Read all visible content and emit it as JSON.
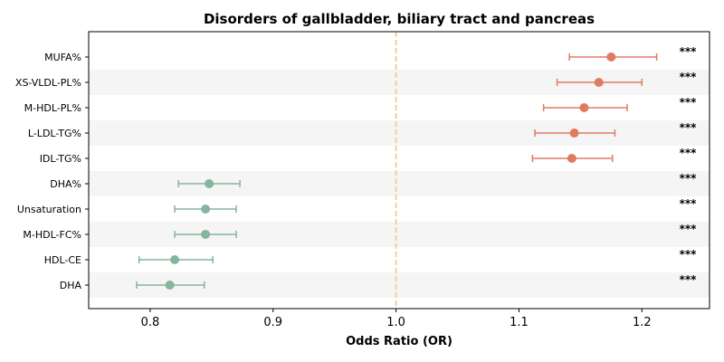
{
  "chart_data": {
    "type": "forest",
    "title": "Disorders of gallbladder, biliary tract and pancreas",
    "xlabel": "Odds Ratio (OR)",
    "ylabel": "",
    "xlim": [
      0.75,
      1.255
    ],
    "xticks": [
      0.8,
      0.9,
      1.0,
      1.1,
      1.2
    ],
    "xtick_labels": [
      "0.8",
      "0.9",
      "1.0",
      "1.1",
      "1.2"
    ],
    "reference_line": 1.0,
    "grid": false,
    "colors": {
      "increased_risk": "#e07b63",
      "decreased_risk": "#85b59c",
      "reference_line": "#f0c97e",
      "stripe": "#f5f5f5"
    },
    "rows": [
      {
        "label": "MUFA%",
        "or": 1.175,
        "ci_low": 1.141,
        "ci_high": 1.212,
        "sig": "***"
      },
      {
        "label": "XS-VLDL-PL%",
        "or": 1.165,
        "ci_low": 1.131,
        "ci_high": 1.2,
        "sig": "***"
      },
      {
        "label": "M-HDL-PL%",
        "or": 1.153,
        "ci_low": 1.12,
        "ci_high": 1.188,
        "sig": "***"
      },
      {
        "label": "L-LDL-TG%",
        "or": 1.145,
        "ci_low": 1.113,
        "ci_high": 1.178,
        "sig": "***"
      },
      {
        "label": "IDL-TG%",
        "or": 1.143,
        "ci_low": 1.111,
        "ci_high": 1.176,
        "sig": "***"
      },
      {
        "label": "DHA%",
        "or": 0.848,
        "ci_low": 0.823,
        "ci_high": 0.873,
        "sig": "***"
      },
      {
        "label": "Unsaturation",
        "or": 0.845,
        "ci_low": 0.82,
        "ci_high": 0.87,
        "sig": "***"
      },
      {
        "label": "M-HDL-FC%",
        "or": 0.845,
        "ci_low": 0.82,
        "ci_high": 0.87,
        "sig": "***"
      },
      {
        "label": "HDL-CE",
        "or": 0.82,
        "ci_low": 0.791,
        "ci_high": 0.851,
        "sig": "***"
      },
      {
        "label": "DHA",
        "or": 0.816,
        "ci_low": 0.789,
        "ci_high": 0.844,
        "sig": "***"
      }
    ]
  }
}
